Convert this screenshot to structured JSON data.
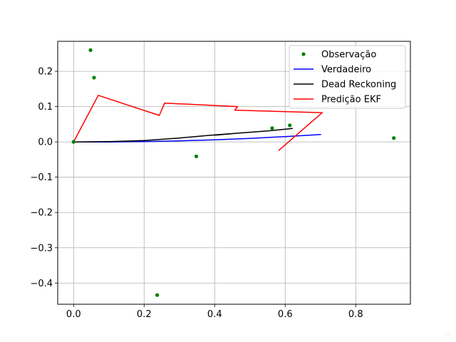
{
  "chart_data": {
    "type": "line",
    "title": "",
    "xlabel": "",
    "ylabel": "",
    "xlim": [
      -0.045,
      0.955
    ],
    "ylim": [
      -0.46,
      0.285
    ],
    "xticks": [
      0.0,
      0.2,
      0.4,
      0.6,
      0.8
    ],
    "xtick_labels": [
      "0.0",
      "0.2",
      "0.4",
      "0.6",
      "0.8"
    ],
    "yticks": [
      -0.4,
      -0.3,
      -0.2,
      -0.1,
      0.0,
      0.1,
      0.2
    ],
    "ytick_labels": [
      "−0.4",
      "−0.3",
      "−0.2",
      "−0.1",
      "0.0",
      "0.1",
      "0.2"
    ],
    "grid": true,
    "legend_position": "top-right",
    "series": [
      {
        "name": "Observação",
        "style": "points",
        "color": "#008000",
        "x": [
          0.0,
          0.048,
          0.058,
          0.348,
          0.237,
          0.563,
          0.613,
          0.908
        ],
        "y": [
          0.0,
          0.26,
          0.182,
          -0.041,
          -0.434,
          0.039,
          0.047,
          0.011
        ]
      },
      {
        "name": "Verdadeiro",
        "style": "line",
        "color": "#0000ff",
        "x": [
          0.0,
          0.1,
          0.2,
          0.3,
          0.4,
          0.5,
          0.6,
          0.7
        ],
        "y": [
          0.0,
          0.0,
          0.001,
          0.003,
          0.006,
          0.01,
          0.015,
          0.021
        ]
      },
      {
        "name": "Dead Reckoning",
        "style": "line",
        "color": "#000000",
        "x": [
          0.0,
          0.1,
          0.2,
          0.3,
          0.39,
          0.47,
          0.4,
          0.47,
          0.55,
          0.62
        ],
        "y": [
          0.0,
          0.001,
          0.004,
          0.011,
          0.019,
          0.025,
          0.019,
          0.025,
          0.031,
          0.038
        ]
      },
      {
        "name": "Predição EKF",
        "style": "line",
        "color": "#ff0000",
        "x": [
          0.0,
          0.07,
          0.243,
          0.258,
          0.465,
          0.457,
          0.705,
          0.582
        ],
        "y": [
          0.0,
          0.132,
          0.075,
          0.11,
          0.1,
          0.09,
          0.083,
          -0.024
        ]
      }
    ]
  }
}
